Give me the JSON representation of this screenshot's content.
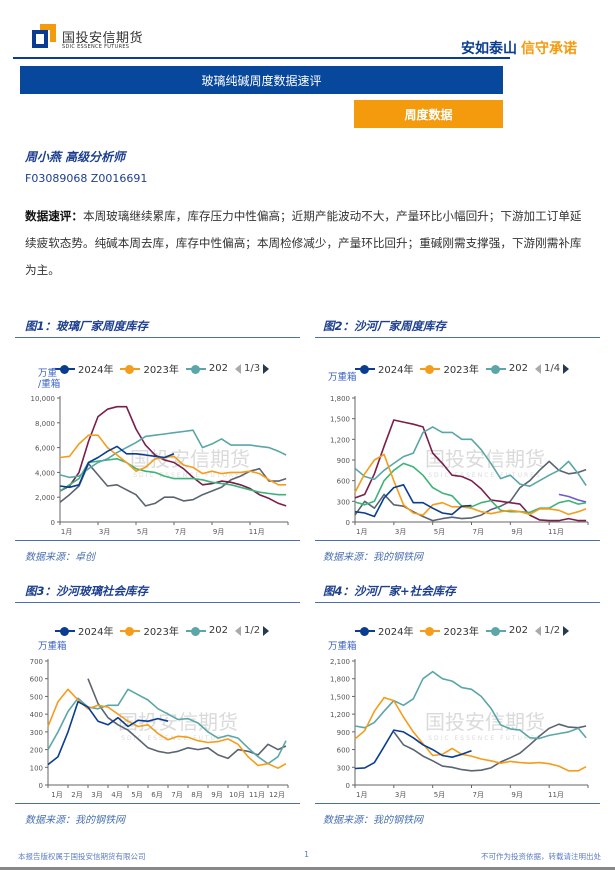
{
  "header": {
    "company_cn": "国投安信期货",
    "company_en": "SDIC ESSENCE FUTURES",
    "slogan_a": "安如泰山",
    "slogan_b": "信守承诺"
  },
  "report_title": "玻璃纯碱周度数据速评",
  "section_label": "周度数据",
  "analyst": {
    "name_title": "周小燕 高级分析师",
    "license": "F03089068 Z0016691"
  },
  "summary": {
    "label": "数据速评：",
    "text": "本周玻璃继续累库，库存压力中性偏高；近期产能波动不大，产量环比小幅回升；下游加工订单延续疲软态势。纯碱本周去库，库存中性偏高；本周检修减少，产量环比回升；重碱刚需支撑强，下游刚需补库为主。"
  },
  "figures": [
    {
      "title": "图1：玻璃厂家周度库存",
      "unit": "万重\n/重箱",
      "legend": [
        "2024年",
        "2023年",
        "202"
      ],
      "pager": "1/3",
      "source": "数据来源：卓创",
      "watermark_cn": "国投安信期货",
      "watermark_en": "SDIC ESSENCE FUTURES"
    },
    {
      "title": "图2：沙河厂家周度库存",
      "unit": "万重箱",
      "legend": [
        "2024年",
        "2023年",
        "202"
      ],
      "pager": "1/4",
      "source": "数据来源：我的钢铁网",
      "watermark_cn": "国投安信期货",
      "watermark_en": "SDIC ESSENCE FUTURES"
    },
    {
      "title": "图3：沙河玻璃社会库存",
      "unit": "万重箱",
      "legend": [
        "2024年",
        "2023年",
        "202"
      ],
      "pager": "1/2",
      "source": "数据来源：我的钢铁网",
      "watermark_cn": "国投安信期货",
      "watermark_en": "SDIC ESSENCE FUTURES"
    },
    {
      "title": "图4：沙河厂家+社会库存",
      "unit": "万重箱",
      "legend": [
        "2024年",
        "2023年",
        "202"
      ],
      "pager": "1/2",
      "source": "数据来源：我的钢铁网",
      "watermark_cn": "国投安信期货",
      "watermark_en": "SDIC ESSENCE FUTURES"
    }
  ],
  "footer": {
    "copyright": "本报告版权属于国投安信期货有限公司",
    "page": "1",
    "disclaimer": "不可作为投资依据，转载请注明出处"
  },
  "colors": {
    "brand_blue": "#07479c",
    "brand_orange": "#f39a0d",
    "series_2024": "#0a3d91",
    "series_2023": "#f59c1a",
    "series_teal": "#5aa6a8",
    "series_green": "#3cb37a",
    "series_maroon": "#7a1e4a",
    "series_grey": "#5a6470",
    "series_purple": "#6a5acd"
  },
  "chart_data": [
    {
      "type": "line",
      "x": [
        1,
        1.5,
        2,
        2.5,
        3,
        3.5,
        4,
        4.5,
        5,
        5.5,
        6,
        6.5,
        7,
        7.5,
        8,
        8.5,
        9,
        9.5,
        10,
        10.5,
        11,
        11.5,
        12,
        12.5,
        12.9
      ],
      "x_ticks": {
        "values": [
          1,
          3,
          5,
          7,
          9,
          11
        ],
        "labels": [
          "1月",
          "3月",
          "5月",
          "7月",
          "9月",
          "11月"
        ]
      },
      "y_ticks": {
        "values": [
          0,
          2000,
          4000,
          6000,
          8000,
          10000
        ],
        "labels": [
          "0",
          "2,000",
          "4,000",
          "6,000",
          "8,000",
          "10,000"
        ]
      },
      "ylim": [
        0,
        10000
      ],
      "xlim": [
        1,
        13
      ],
      "ylabel": "万重\n/重箱",
      "grid": false,
      "series": [
        {
          "name": "2024年",
          "color": "#0a3d91",
          "values": [
            2900,
            2800,
            3000,
            4800,
            5200,
            5700,
            6100,
            5500,
            5500,
            5400,
            5300,
            5200,
            5500,
            null,
            null,
            null,
            null,
            null,
            null,
            null,
            null,
            null,
            null,
            null,
            null
          ]
        },
        {
          "name": "2023年",
          "color": "#f59c1a",
          "values": [
            5200,
            5300,
            6300,
            7000,
            7000,
            6000,
            5400,
            4800,
            4100,
            4400,
            5100,
            5200,
            5300,
            4600,
            4400,
            3900,
            4100,
            3900,
            4000,
            4000,
            4100,
            3900,
            3400,
            3000,
            3000
          ]
        },
        {
          "name": "202",
          "color": "#5aa6a8",
          "values": [
            3800,
            3600,
            3700,
            4300,
            4800,
            5100,
            5600,
            6000,
            6400,
            6900,
            7000,
            7100,
            7200,
            7300,
            7400,
            6000,
            6300,
            6700,
            6200,
            6200,
            6200,
            6100,
            6000,
            5700,
            5400
          ]
        },
        {
          "color": "#3cb37a",
          "values": [
            2500,
            3000,
            3500,
            4800,
            4900,
            5000,
            5100,
            4800,
            4300,
            4100,
            4000,
            3700,
            3500,
            3500,
            3500,
            3400,
            3200,
            3100,
            3000,
            2800,
            2600,
            2400,
            2300,
            2200,
            2200
          ]
        },
        {
          "color": "#7a1e4a",
          "values": [
            2500,
            2900,
            4000,
            6500,
            8500,
            9100,
            9300,
            9300,
            7500,
            6200,
            5400,
            5000,
            4800,
            4300,
            3600,
            3000,
            3100,
            3300,
            3200,
            3000,
            2700,
            2200,
            1900,
            1500,
            1300
          ]
        },
        {
          "color": "#5a6470",
          "values": [
            1600,
            2200,
            2900,
            4700,
            3800,
            2900,
            3000,
            2600,
            2200,
            1300,
            1500,
            2000,
            2000,
            1700,
            1800,
            2200,
            2500,
            2800,
            3400,
            3700,
            4100,
            4300,
            3300,
            3300,
            3500
          ]
        }
      ]
    },
    {
      "type": "line",
      "x": [
        1,
        1.5,
        2,
        2.5,
        3,
        3.5,
        4,
        4.5,
        5,
        5.5,
        6,
        6.5,
        7,
        7.5,
        8,
        8.5,
        9,
        9.5,
        10,
        10.5,
        11,
        11.5,
        12,
        12.5,
        12.9
      ],
      "x_ticks": {
        "values": [
          1,
          3,
          5,
          7,
          9,
          11
        ],
        "labels": [
          "1月",
          "3月",
          "5月",
          "7月",
          "9月",
          "11月"
        ]
      },
      "y_ticks": {
        "values": [
          0,
          300,
          600,
          900,
          1200,
          1500,
          1800
        ],
        "labels": [
          "0",
          "300",
          "600",
          "900",
          "1,200",
          "1,500",
          "1,800"
        ]
      },
      "ylim": [
        0,
        1800
      ],
      "xlim": [
        1,
        13
      ],
      "ylabel": "万重箱",
      "grid": false,
      "series": [
        {
          "name": "2024年",
          "color": "#0a3d91",
          "values": [
            150,
            130,
            80,
            350,
            500,
            540,
            280,
            280,
            200,
            130,
            110,
            230,
            240,
            null,
            null,
            null,
            null,
            null,
            null,
            null,
            null,
            null,
            null,
            null,
            null
          ]
        },
        {
          "name": "2023年",
          "color": "#f59c1a",
          "values": [
            430,
            700,
            900,
            980,
            600,
            250,
            130,
            100,
            250,
            280,
            220,
            220,
            200,
            150,
            120,
            150,
            170,
            150,
            110,
            190,
            190,
            170,
            110,
            150,
            190
          ]
        },
        {
          "name": "202",
          "color": "#5aa6a8",
          "values": [
            780,
            660,
            620,
            750,
            850,
            950,
            1000,
            1300,
            1380,
            1300,
            1300,
            1200,
            1200,
            1050,
            850,
            630,
            680,
            550,
            520,
            600,
            680,
            750,
            880,
            700,
            530
          ]
        },
        {
          "color": "#3cb37a",
          "values": [
            290,
            250,
            300,
            600,
            750,
            850,
            800,
            680,
            500,
            420,
            380,
            230,
            220,
            280,
            310,
            170,
            150,
            150,
            140,
            200,
            200,
            280,
            310,
            260,
            280
          ]
        },
        {
          "color": "#7a1e4a",
          "values": [
            350,
            400,
            700,
            1100,
            1480,
            1450,
            1420,
            1380,
            1000,
            850,
            680,
            660,
            600,
            480,
            320,
            300,
            280,
            260,
            100,
            30,
            20,
            20,
            50,
            20,
            20
          ]
        },
        {
          "color": "#5a6470",
          "values": [
            100,
            300,
            200,
            400,
            250,
            230,
            150,
            80,
            20,
            50,
            70,
            50,
            60,
            100,
            180,
            230,
            300,
            500,
            600,
            750,
            880,
            750,
            700,
            720,
            760
          ]
        },
        {
          "color": "#6a5acd",
          "values": [
            null,
            null,
            null,
            null,
            null,
            null,
            null,
            null,
            null,
            null,
            null,
            null,
            null,
            null,
            null,
            null,
            null,
            null,
            null,
            null,
            null,
            400,
            370,
            320,
            290
          ]
        }
      ]
    },
    {
      "type": "line",
      "x": [
        1,
        1.5,
        2,
        2.5,
        3,
        3.5,
        4,
        4.5,
        5,
        5.5,
        6,
        6.5,
        7,
        7.5,
        8,
        8.5,
        9,
        9.5,
        10,
        10.5,
        11,
        11.5,
        12,
        12.5,
        12.9
      ],
      "x_ticks": {
        "values": [
          1,
          2,
          3,
          4,
          5,
          6,
          7,
          8,
          9,
          10,
          11,
          12
        ],
        "labels": [
          "1月",
          "2月",
          "3月",
          "4月",
          "5月",
          "6月",
          "7月",
          "8月",
          "9月",
          "10月",
          "11月",
          "12月"
        ]
      },
      "y_ticks": {
        "values": [
          0,
          100,
          200,
          300,
          400,
          500,
          600,
          700
        ],
        "labels": [
          "0",
          "100",
          "200",
          "300",
          "400",
          "500",
          "600",
          "700"
        ]
      },
      "ylim": [
        0,
        700
      ],
      "xlim": [
        1,
        13
      ],
      "ylabel": "万重箱",
      "grid": false,
      "series": [
        {
          "name": "2024年",
          "color": "#0a3d91",
          "values": [
            115,
            160,
            300,
            470,
            440,
            360,
            340,
            380,
            330,
            365,
            360,
            375,
            360,
            null,
            null,
            null,
            null,
            null,
            null,
            null,
            null,
            null,
            null,
            null,
            null
          ]
        },
        {
          "name": "2023年",
          "color": "#f59c1a",
          "values": [
            330,
            470,
            540,
            480,
            430,
            450,
            440,
            400,
            360,
            330,
            340,
            290,
            255,
            275,
            270,
            250,
            240,
            245,
            260,
            230,
            160,
            110,
            120,
            95,
            120
          ]
        },
        {
          "name": "202",
          "color": "#5aa6a8",
          "values": [
            200,
            300,
            415,
            490,
            440,
            430,
            450,
            450,
            540,
            510,
            480,
            430,
            400,
            370,
            375,
            350,
            300,
            265,
            280,
            265,
            210,
            160,
            120,
            160,
            250
          ]
        },
        {
          "color": "#5a6470",
          "values": [
            null,
            null,
            null,
            null,
            600,
            460,
            380,
            340,
            310,
            260,
            210,
            190,
            180,
            190,
            210,
            200,
            210,
            170,
            150,
            200,
            190,
            170,
            230,
            200,
            220
          ]
        }
      ]
    },
    {
      "type": "line",
      "x": [
        1,
        1.5,
        2,
        2.5,
        3,
        3.5,
        4,
        4.5,
        5,
        5.5,
        6,
        6.5,
        7,
        7.5,
        8,
        8.5,
        9,
        9.5,
        10,
        10.5,
        11,
        11.5,
        12,
        12.5,
        12.9
      ],
      "x_ticks": {
        "values": [
          1,
          3,
          5,
          7,
          9,
          11
        ],
        "labels": [
          "1月",
          "3月",
          "5月",
          "7月",
          "9月",
          "11月"
        ]
      },
      "y_ticks": {
        "values": [
          0,
          300,
          600,
          900,
          1200,
          1500,
          1800,
          2100
        ],
        "labels": [
          "0",
          "300",
          "600",
          "900",
          "1,200",
          "1,500",
          "1,800",
          "2,100"
        ]
      },
      "ylim": [
        0,
        2100
      ],
      "xlim": [
        1,
        13
      ],
      "ylabel": "万重箱",
      "grid": false,
      "series": [
        {
          "name": "2024年",
          "color": "#0a3d91",
          "values": [
            280,
            290,
            380,
            650,
            930,
            900,
            800,
            680,
            600,
            500,
            470,
            520,
            580,
            null,
            null,
            null,
            null,
            null,
            null,
            null,
            null,
            null,
            null,
            null,
            null
          ]
        },
        {
          "name": "2023年",
          "color": "#f59c1a",
          "values": [
            780,
            920,
            1250,
            1480,
            1430,
            1150,
            900,
            700,
            500,
            520,
            620,
            520,
            490,
            440,
            410,
            370,
            400,
            380,
            370,
            380,
            360,
            320,
            240,
            240,
            310
          ]
        },
        {
          "name": "202",
          "color": "#5aa6a8",
          "values": [
            1000,
            970,
            1060,
            1250,
            1430,
            1350,
            1460,
            1800,
            1920,
            1800,
            1760,
            1650,
            1620,
            1500,
            1300,
            1020,
            950,
            930,
            800,
            790,
            840,
            870,
            900,
            960,
            800
          ]
        },
        {
          "color": "#5a6470",
          "values": [
            null,
            null,
            null,
            null,
            900,
            680,
            600,
            490,
            410,
            320,
            300,
            260,
            240,
            250,
            290,
            390,
            460,
            540,
            680,
            830,
            960,
            1030,
            980,
            970,
            1000
          ]
        }
      ]
    }
  ]
}
